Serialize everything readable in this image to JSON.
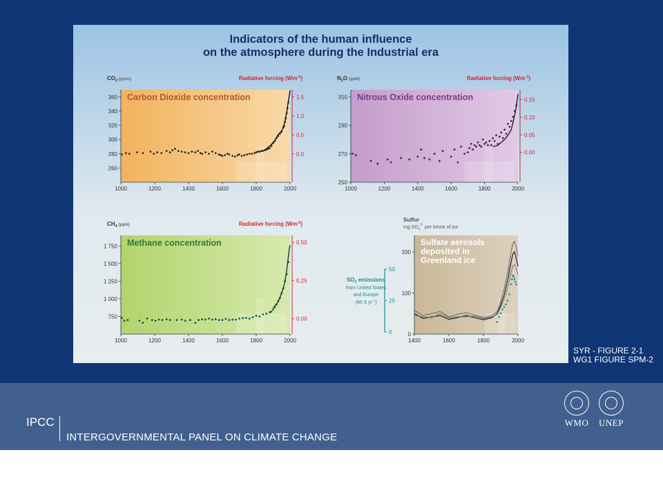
{
  "title_lines": [
    "Indicators of the human influence",
    "on the atmosphere during the Industrial era"
  ],
  "credit": [
    "SYR - FIGURE 2-1",
    "WG1 FIGURE SPM-2"
  ],
  "org": {
    "short": "IPCC",
    "long": "INTERGOVERNMENTAL PANEL ON CLIMATE CHANGE"
  },
  "logos": [
    "WMO",
    "UNEP"
  ],
  "colors": {
    "frame": "#0f3574",
    "band": "#41608f",
    "forcing": "#d4252c",
    "so2": "#12918e"
  },
  "chart_data": [
    {
      "type": "scatter",
      "title": "Carbon Dioxide concentration",
      "ylabel_left": "CO",
      "ylabel_left_sub": "2",
      "ylabel_left_unit": "(ppm)",
      "ylabel_right": "Radiative forcing (Wm",
      "ylabel_right_sup": "-2",
      "ylabel_right_end": ")",
      "xlim": [
        1000,
        2000
      ],
      "ylim": [
        240,
        370
      ],
      "xticks": [
        "1000",
        "1200",
        "1400",
        "1600",
        "1800",
        "2000"
      ],
      "yticks": [
        "260",
        "280",
        "300",
        "320",
        "340",
        "360"
      ],
      "yticks_right": [
        "0.0",
        "0.5",
        "1.0",
        "1.5"
      ],
      "right_values": [
        0,
        0.5,
        1.0,
        1.5
      ],
      "x": [
        1006,
        1030,
        1050,
        1095,
        1130,
        1175,
        1195,
        1215,
        1240,
        1270,
        1290,
        1305,
        1320,
        1340,
        1360,
        1380,
        1400,
        1420,
        1440,
        1455,
        1470,
        1480,
        1500,
        1520,
        1540,
        1560,
        1580,
        1590,
        1600,
        1615,
        1630,
        1640,
        1660,
        1675,
        1690,
        1700,
        1715,
        1730,
        1745,
        1760,
        1775,
        1790,
        1800,
        1810,
        1820,
        1830,
        1840,
        1850,
        1860,
        1870,
        1880,
        1890,
        1900,
        1910,
        1920,
        1930,
        1940,
        1950,
        1960,
        1965,
        1970,
        1975,
        1980,
        1985,
        1990
      ],
      "y": [
        279,
        281,
        280,
        282,
        281,
        283,
        280,
        282,
        281,
        284,
        282,
        285,
        287,
        284,
        283,
        282,
        281,
        283,
        282,
        284,
        281,
        280,
        282,
        280,
        283,
        281,
        279,
        278,
        277,
        278,
        280,
        279,
        277,
        276,
        278,
        279,
        277,
        278,
        279,
        280,
        280,
        281,
        282,
        283,
        283,
        284,
        284,
        285,
        286,
        287,
        288,
        291,
        295,
        298,
        302,
        305,
        308,
        311,
        317,
        319,
        325,
        330,
        337,
        344,
        352
      ],
      "line_x": [
        1850,
        1870,
        1890,
        1910,
        1930,
        1950,
        1960,
        1970,
        1980,
        1990,
        2000
      ],
      "line_y": [
        285,
        289,
        293,
        299,
        307,
        312,
        317,
        326,
        338,
        354,
        369
      ]
    },
    {
      "type": "scatter",
      "title": "Nitrous Oxide concentration",
      "ylabel_left": "N",
      "ylabel_left_sub": "2",
      "ylabel_left_end": "O",
      "ylabel_left_unit": "(ppb)",
      "ylabel_right": "Radiative forcing (Wm",
      "ylabel_right_sup": "-2",
      "ylabel_right_end": ")",
      "xlim": [
        1000,
        2000
      ],
      "ylim": [
        250,
        315
      ],
      "xticks": [
        "1000",
        "1200",
        "1400",
        "1600",
        "1800",
        "2000"
      ],
      "yticks": [
        "250",
        "270",
        "290",
        "310"
      ],
      "yticks_right": [
        "0.00",
        "0.05",
        "0.10",
        "0.15"
      ],
      "right_values": [
        0,
        0.05,
        0.1,
        0.15
      ],
      "x": [
        1010,
        1030,
        1120,
        1160,
        1220,
        1240,
        1300,
        1350,
        1400,
        1420,
        1440,
        1470,
        1500,
        1530,
        1550,
        1600,
        1620,
        1640,
        1660,
        1680,
        1700,
        1710,
        1720,
        1730,
        1740,
        1750,
        1760,
        1770,
        1780,
        1790,
        1800,
        1810,
        1820,
        1830,
        1840,
        1850,
        1860,
        1870,
        1880,
        1890,
        1900,
        1910,
        1920,
        1930,
        1940,
        1950,
        1960,
        1970,
        1980,
        1990
      ],
      "y": [
        270,
        269,
        265,
        263,
        266,
        264,
        267,
        266,
        268,
        273,
        267,
        266,
        270,
        265,
        272,
        268,
        273,
        264,
        275,
        270,
        271,
        274,
        277,
        273,
        276,
        275,
        278,
        276,
        275,
        280,
        277,
        278,
        276,
        279,
        276,
        281,
        279,
        283,
        277,
        282,
        285,
        281,
        287,
        284,
        291,
        289,
        293,
        296,
        300,
        304
      ],
      "line_x": [
        1850,
        1880,
        1900,
        1920,
        1940,
        1960,
        1970,
        1980,
        1990,
        2000
      ],
      "line_y": [
        275,
        276,
        278,
        280,
        283,
        287,
        292,
        297,
        303,
        312
      ]
    },
    {
      "type": "scatter",
      "title": "Methane concentration",
      "ylabel_left": "CH",
      "ylabel_left_sub": "4",
      "ylabel_left_unit": "(ppb)",
      "ylabel_right": "Radiative forcing (Wm",
      "ylabel_right_sup": "-2",
      "ylabel_right_end": ")",
      "xlim": [
        1000,
        2000
      ],
      "ylim": [
        500,
        1900
      ],
      "xticks": [
        "1000",
        "1200",
        "1400",
        "1600",
        "1800",
        "2000"
      ],
      "yticks": [
        "750",
        "1 000",
        "1 250",
        "1 500",
        "1 750"
      ],
      "yticks_right": [
        "0.00",
        "0.25",
        "0.50"
      ],
      "right_values": [
        0,
        0.25,
        0.5
      ],
      "x": [
        1006,
        1020,
        1040,
        1110,
        1130,
        1155,
        1185,
        1205,
        1225,
        1245,
        1270,
        1290,
        1330,
        1360,
        1380,
        1410,
        1440,
        1460,
        1480,
        1500,
        1520,
        1540,
        1560,
        1580,
        1600,
        1620,
        1640,
        1660,
        1680,
        1700,
        1720,
        1740,
        1760,
        1780,
        1800,
        1820,
        1840,
        1860,
        1880,
        1890,
        1900,
        1910,
        1920,
        1930,
        1940,
        1950,
        1960,
        1970,
        1980,
        1990
      ],
      "y": [
        730,
        690,
        700,
        690,
        660,
        720,
        700,
        690,
        705,
        700,
        710,
        700,
        700,
        705,
        690,
        700,
        660,
        700,
        710,
        705,
        720,
        705,
        710,
        700,
        700,
        715,
        700,
        705,
        705,
        720,
        725,
        730,
        720,
        740,
        760,
        750,
        780,
        790,
        810,
        820,
        850,
        880,
        920,
        970,
        1010,
        1080,
        1150,
        1250,
        1350,
        1520
      ],
      "line_x": [
        1900,
        1930,
        1950,
        1960,
        1970,
        1980,
        1985,
        1990,
        1995,
        2000
      ],
      "line_y": [
        870,
        960,
        1080,
        1150,
        1250,
        1400,
        1500,
        1600,
        1700,
        1760
      ]
    },
    {
      "type": "line",
      "title": "Sulfate aerosols deposited in Greenland ice",
      "ylabel_top": "Sulfur",
      "ylabel_left_unit_a": "mg SO",
      "ylabel_left_sub": "4",
      "ylabel_left_sup": "2-",
      "ylabel_left_unit_b": " per tonne of ice",
      "left_axis": {
        "label": "SO",
        "label_sub": "2",
        "label_end": " emissions",
        "lines": [
          "from United States",
          "and Europe"
        ],
        "unit_a": "(Mt S yr",
        "unit_sup": "-1",
        "unit_end": ")",
        "ticks": [
          "0",
          "25",
          "50"
        ],
        "values": [
          0,
          25,
          50
        ]
      },
      "xlim": [
        1400,
        2000
      ],
      "ylim": [
        0,
        240
      ],
      "xticks": [
        "1400",
        "1600",
        "1800",
        "2000"
      ],
      "yticks": [
        "0",
        "100",
        "200"
      ],
      "series": [
        {
          "x": [
            1400,
            1450,
            1500,
            1550,
            1600,
            1650,
            1700,
            1750,
            1800,
            1850,
            1880,
            1900,
            1920,
            1940,
            1960,
            1970,
            1980,
            1990,
            2000
          ],
          "y": [
            58,
            45,
            50,
            55,
            42,
            48,
            52,
            46,
            40,
            45,
            55,
            80,
            110,
            150,
            200,
            220,
            225,
            210,
            190
          ]
        },
        {
          "x": [
            1400,
            1450,
            1500,
            1550,
            1600,
            1650,
            1700,
            1750,
            1800,
            1850,
            1880,
            1900,
            1920,
            1940,
            1960,
            1970,
            1980,
            1990,
            2000
          ],
          "y": [
            50,
            38,
            42,
            45,
            36,
            40,
            45,
            40,
            35,
            40,
            50,
            70,
            95,
            130,
            175,
            195,
            200,
            185,
            165
          ]
        },
        {
          "x": [
            1400,
            1450,
            1500,
            1550,
            1600,
            1650,
            1700,
            1750,
            1800,
            1850,
            1880,
            1900,
            1920,
            1940,
            1960,
            1970,
            1980,
            1990,
            2000
          ],
          "y": [
            45,
            42,
            40,
            50,
            40,
            42,
            42,
            44,
            38,
            42,
            48,
            65,
            85,
            110,
            150,
            165,
            170,
            160,
            145
          ]
        }
      ],
      "so2_x": [
        1880,
        1890,
        1900,
        1910,
        1920,
        1930,
        1940,
        1950,
        1960,
        1965,
        1970,
        1975,
        1980,
        1985,
        1990
      ],
      "so2_y": [
        8,
        12,
        15,
        18,
        20,
        22,
        25,
        30,
        38,
        42,
        45,
        44,
        42,
        40,
        38
      ]
    }
  ]
}
